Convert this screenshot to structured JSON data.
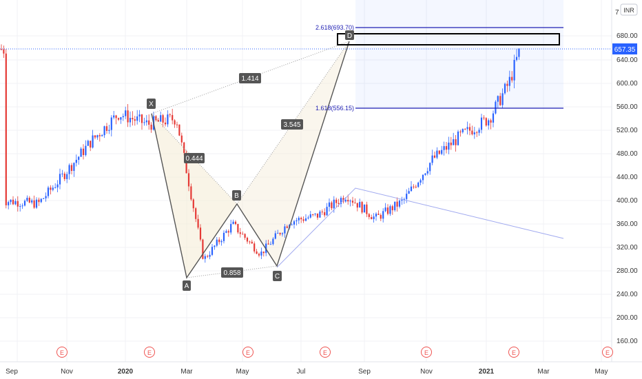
{
  "currency_badge": "INR",
  "price_axis": {
    "top_tick_partial": "7",
    "ticks": [
      "680.00",
      "640.00",
      "600.00",
      "560.00",
      "520.00",
      "480.00",
      "440.00",
      "400.00",
      "360.00",
      "320.00",
      "280.00",
      "240.00",
      "200.00",
      "160.00"
    ]
  },
  "time_axis": {
    "labels": [
      "Sep",
      "Nov",
      "2020",
      "Mar",
      "May",
      "Jul",
      "Sep",
      "Nov",
      "2021",
      "Mar",
      "May"
    ],
    "bold_labels": [
      "2020",
      "2021"
    ]
  },
  "earnings_marker": "E",
  "colors": {
    "up_candle": "#2962ff",
    "down_candle": "#e53935",
    "fib_line": "#1f1fb3",
    "pattern_line": "#555555",
    "last_price_tag": "#2962ff",
    "earnings_marker": "#ef5350"
  },
  "pattern": {
    "name": "harmonic XABCD",
    "points": [
      {
        "label": "X",
        "date": "2020-02",
        "price": 548
      },
      {
        "label": "A",
        "date": "2020-03",
        "price": 272
      },
      {
        "label": "B",
        "date": "2020-04",
        "price": 395
      },
      {
        "label": "C",
        "date": "2020-06",
        "price": 288
      },
      {
        "label": "D",
        "date": "2020-08",
        "price": 670
      }
    ],
    "ratios": {
      "XB": "0.444",
      "AC": "0.858",
      "BD": "3.545",
      "XD": "1.414"
    }
  },
  "fib_levels": [
    {
      "label": "2.618(693.70)",
      "price": 693.7
    },
    {
      "label": "1.618(556.15)",
      "price": 556.15
    }
  ],
  "last_price": "657.35",
  "chart_data": {
    "type": "candlestick",
    "symbol_currency": "INR",
    "ylim": [
      140,
      745
    ],
    "x_range": [
      "2019-08-15",
      "2021-05-31"
    ],
    "series": [
      {
        "name": "price",
        "points": [
          {
            "date": "2019-08-20",
            "close": 400
          },
          {
            "date": "2019-09-25",
            "close": 395
          },
          {
            "date": "2019-10-20",
            "close": 440
          },
          {
            "date": "2019-11-20",
            "close": 500
          },
          {
            "date": "2019-12-20",
            "close": 548
          },
          {
            "date": "2020-01-20",
            "close": 530
          },
          {
            "date": "2020-02-20",
            "close": 540
          },
          {
            "date": "2020-03-20",
            "close": 300
          },
          {
            "date": "2020-04-20",
            "close": 360
          },
          {
            "date": "2020-05-20",
            "close": 310
          },
          {
            "date": "2020-06-20",
            "close": 365
          },
          {
            "date": "2020-07-20",
            "close": 375
          },
          {
            "date": "2020-08-20",
            "close": 410
          },
          {
            "date": "2020-09-20",
            "close": 370
          },
          {
            "date": "2020-10-20",
            "close": 400
          },
          {
            "date": "2020-11-20",
            "close": 470
          },
          {
            "date": "2020-12-20",
            "close": 510
          },
          {
            "date": "2021-01-20",
            "close": 540
          },
          {
            "date": "2021-02-10",
            "close": 600
          },
          {
            "date": "2021-02-22",
            "close": 657.35
          }
        ]
      }
    ]
  }
}
